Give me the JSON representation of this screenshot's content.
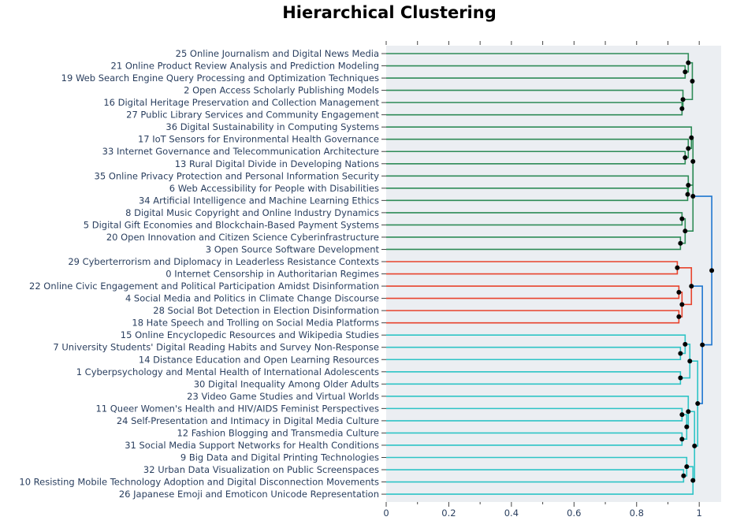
{
  "chart_data": {
    "type": "dendrogram",
    "title": "Hierarchical Clustering",
    "xlim": [
      0,
      1.07
    ],
    "x_ticks": [
      "0",
      "0.2",
      "0.4",
      "0.6",
      "0.8",
      "1"
    ],
    "grid": false,
    "colors": {
      "green": "#2e8b57",
      "red": "#e8432d",
      "cyan": "#2ec4c6",
      "blue": "#1f77d0",
      "node": "#000000",
      "plot_bg": "#ebeef2"
    },
    "leaves": [
      "25 Online Journalism and Digital News Media",
      "21 Online Product Review Analysis and Prediction Modeling",
      "19 Web Search Engine Query Processing and Optimization Techniques",
      "2 Open Access Scholarly Publishing Models",
      "16 Digital Heritage Preservation and Collection Management",
      "27 Public Library Services and Community Engagement",
      "36 Digital Sustainability in Computing Systems",
      "17 IoT Sensors for Environmental Health Governance",
      "33 Internet Governance and Telecommunication Architecture",
      "13 Rural Digital Divide in Developing Nations",
      "35 Online Privacy Protection and Personal Information Security",
      "6 Web Accessibility for People with Disabilities",
      "34 Artificial Intelligence and Machine Learning Ethics",
      "8 Digital Music Copyright and Online Industry Dynamics",
      "5 Digital Gift Economies and Blockchain-Based Payment Systems",
      "20 Open Innovation and Citizen Science Cyberinfrastructure",
      "3 Open Source Software Development",
      "29 Cyberterrorism and Diplomacy in Leaderless Resistance Contexts",
      "0 Internet Censorship in Authoritarian Regimes",
      "22 Online Civic Engagement and Political Participation Amidst Disinformation",
      "4 Social Media and Politics in Climate Change Discourse",
      "28 Social Bot Detection in Election Disinformation",
      "18 Hate Speech and Trolling on Social Media Platforms",
      "15 Online Encyclopedic Resources and Wikipedia Studies",
      "7 University Students' Digital Reading Habits and Survey Non-Response",
      "14 Distance Education and Open Learning Resources",
      "1 Cyberpsychology and Mental Health of International Adolescents",
      "30 Digital Inequality Among Older Adults",
      "23 Video Game Studies and Virtual Worlds",
      "11 Queer Women's Health and HIV/AIDS Feminist Perspectives",
      "24 Self-Presentation and Intimacy in Digital Media Culture",
      "12 Fashion Blogging and Transmedia Culture",
      "31 Social Media Support Networks for Health Conditions",
      "9 Big Data and Digital Printing Technologies",
      "32 Urban Data Visualization on Public Screenspaces",
      "10 Resisting Mobile Technology Adoption and Digital Disconnection Movements",
      "26 Japanese Emoji and Emoticon Unicode Representation"
    ],
    "merges": [
      {
        "a": 1,
        "b": 2,
        "h": 0.955,
        "color": "green"
      },
      {
        "a": 0,
        "b": 37,
        "h": 0.965,
        "color": "green"
      },
      {
        "a": 4,
        "b": 5,
        "h": 0.945,
        "color": "green"
      },
      {
        "a": 3,
        "b": 39,
        "h": 0.948,
        "color": "green"
      },
      {
        "a": 38,
        "b": 40,
        "h": 0.978,
        "color": "green"
      },
      {
        "a": 8,
        "b": 9,
        "h": 0.955,
        "color": "green"
      },
      {
        "a": 7,
        "b": 42,
        "h": 0.965,
        "color": "green"
      },
      {
        "a": 6,
        "b": 43,
        "h": 0.975,
        "color": "green"
      },
      {
        "a": 11,
        "b": 12,
        "h": 0.963,
        "color": "green"
      },
      {
        "a": 10,
        "b": 45,
        "h": 0.965,
        "color": "green"
      },
      {
        "a": 44,
        "b": 46,
        "h": 0.98,
        "color": "green"
      },
      {
        "a": 13,
        "b": 14,
        "h": 0.945,
        "color": "green"
      },
      {
        "a": 15,
        "b": 16,
        "h": 0.94,
        "color": "green"
      },
      {
        "a": 48,
        "b": 49,
        "h": 0.955,
        "color": "green"
      },
      {
        "a": 47,
        "b": 50,
        "h": 0.98,
        "color": "green"
      },
      {
        "a": 17,
        "b": 18,
        "h": 0.93,
        "color": "red"
      },
      {
        "a": 19,
        "b": 20,
        "h": 0.935,
        "color": "red"
      },
      {
        "a": 21,
        "b": 22,
        "h": 0.935,
        "color": "red"
      },
      {
        "a": 53,
        "b": 54,
        "h": 0.945,
        "color": "red"
      },
      {
        "a": 52,
        "b": 55,
        "h": 0.975,
        "color": "red"
      },
      {
        "a": 24,
        "b": 25,
        "h": 0.94,
        "color": "cyan"
      },
      {
        "a": 23,
        "b": 57,
        "h": 0.955,
        "color": "cyan"
      },
      {
        "a": 26,
        "b": 27,
        "h": 0.94,
        "color": "cyan"
      },
      {
        "a": 58,
        "b": 59,
        "h": 0.97,
        "color": "cyan"
      },
      {
        "a": 29,
        "b": 30,
        "h": 0.945,
        "color": "cyan"
      },
      {
        "a": 31,
        "b": 32,
        "h": 0.945,
        "color": "cyan"
      },
      {
        "a": 61,
        "b": 62,
        "h": 0.96,
        "color": "cyan"
      },
      {
        "a": 28,
        "b": 63,
        "h": 0.965,
        "color": "cyan"
      },
      {
        "a": 34,
        "b": 35,
        "h": 0.95,
        "color": "cyan"
      },
      {
        "a": 33,
        "b": 65,
        "h": 0.96,
        "color": "cyan"
      },
      {
        "a": 66,
        "b": 36,
        "h": 0.98,
        "color": "cyan"
      },
      {
        "a": 64,
        "b": 67,
        "h": 0.985,
        "color": "cyan"
      },
      {
        "a": 60,
        "b": 68,
        "h": 0.995,
        "color": "cyan"
      },
      {
        "a": 56,
        "b": 69,
        "h": 1.01,
        "color": "blue"
      },
      {
        "a": 51,
        "b": 70,
        "h": 1.04,
        "color": "blue"
      }
    ]
  }
}
